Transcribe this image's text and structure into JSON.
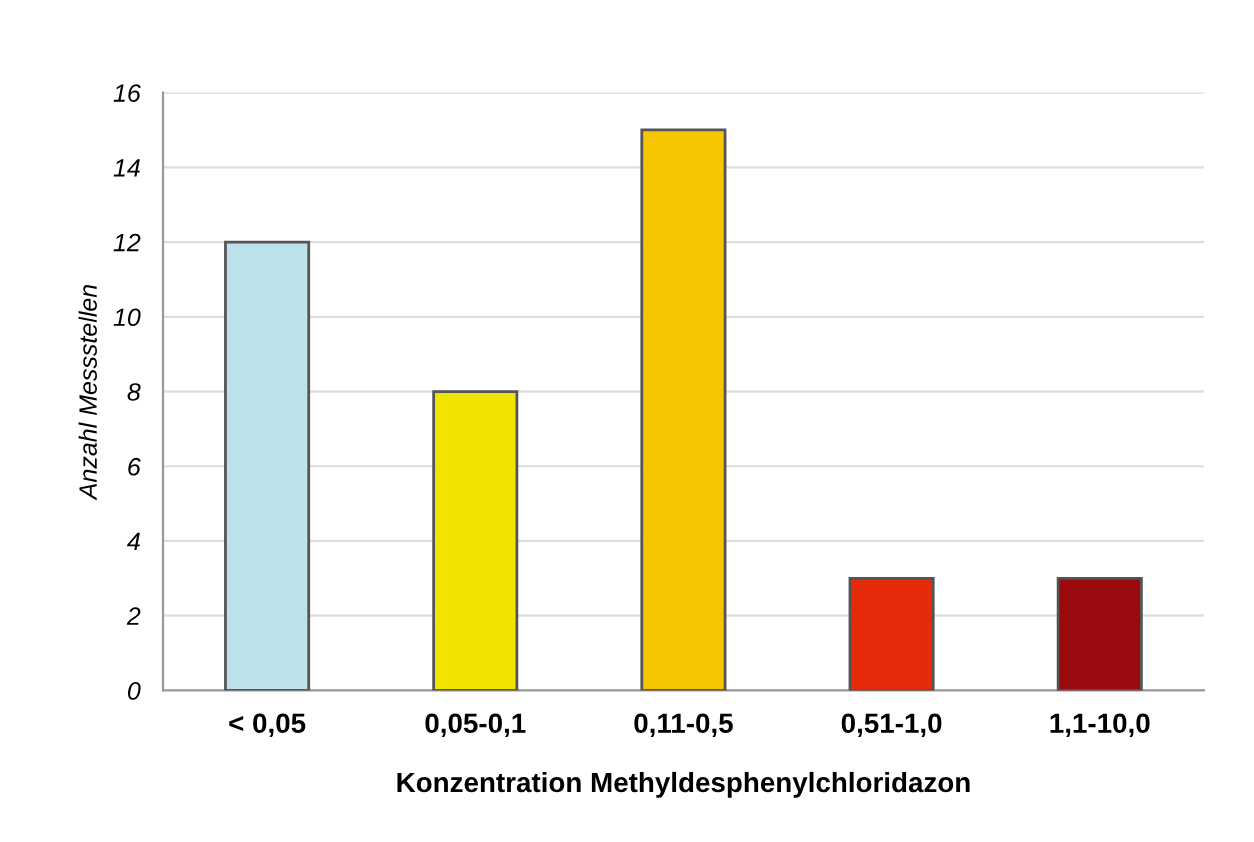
{
  "chart_data": {
    "type": "bar",
    "xlabel": "Konzentration Methyldesphenylchloridazon",
    "ylabel": "Anzahl Messstellen",
    "categories": [
      "< 0,05",
      "0,05-0,1",
      "0,11-0,5",
      "0,51-1,0",
      "1,1-10,0"
    ],
    "values": [
      12,
      8,
      15,
      3,
      3
    ],
    "colors": [
      "#bde3ea",
      "#f0e400",
      "#f6c600",
      "#e52b0c",
      "#9a0a0e"
    ],
    "ylim": [
      0,
      16
    ],
    "yticks": [
      0,
      2,
      4,
      6,
      8,
      10,
      12,
      14,
      16
    ],
    "grid": "y"
  }
}
